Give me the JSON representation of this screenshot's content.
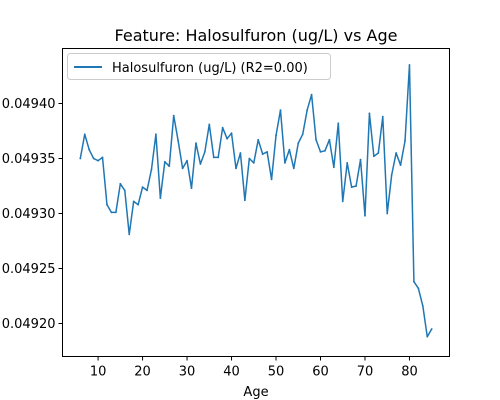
{
  "chart_data": {
    "type": "line",
    "title": "Feature: Halosulfuron (ug/L) vs Age",
    "xlabel": "Age",
    "ylabel": "",
    "xlim": [
      2,
      89
    ],
    "ylim": [
      0.04917,
      0.04945
    ],
    "xticks": [
      10,
      20,
      30,
      40,
      50,
      60,
      70,
      80
    ],
    "yticks": [
      0.0492,
      0.04925,
      0.0493,
      0.04935,
      0.0494
    ],
    "ytick_labels": [
      "0.04920",
      "0.04925",
      "0.04930",
      "0.04935",
      "0.04940"
    ],
    "grid": false,
    "legend": "upper left",
    "series": [
      {
        "name": "Halosulfuron (ug/L) (R2=0.00)",
        "color": "#1f77b4",
        "x": [
          6,
          7,
          8,
          9,
          10,
          11,
          12,
          13,
          14,
          15,
          16,
          17,
          18,
          19,
          20,
          21,
          22,
          23,
          24,
          25,
          26,
          27,
          28,
          29,
          30,
          31,
          32,
          33,
          34,
          35,
          36,
          37,
          38,
          39,
          40,
          41,
          42,
          43,
          44,
          45,
          46,
          47,
          48,
          49,
          50,
          51,
          52,
          53,
          54,
          55,
          56,
          57,
          58,
          59,
          60,
          61,
          62,
          63,
          64,
          65,
          66,
          67,
          68,
          69,
          70,
          71,
          72,
          73,
          74,
          75,
          76,
          77,
          78,
          79,
          80,
          81,
          82,
          83,
          84,
          85
        ],
        "y": [
          0.04935,
          0.049372,
          0.049358,
          0.04935,
          0.049348,
          0.049351,
          0.049308,
          0.049301,
          0.049301,
          0.049327,
          0.049321,
          0.049281,
          0.049311,
          0.049308,
          0.049324,
          0.049321,
          0.04934,
          0.049372,
          0.049314,
          0.049347,
          0.049343,
          0.049389,
          0.049366,
          0.049341,
          0.049348,
          0.049323,
          0.049364,
          0.049345,
          0.049356,
          0.049381,
          0.049351,
          0.049351,
          0.049378,
          0.049368,
          0.049373,
          0.049341,
          0.049355,
          0.049312,
          0.04935,
          0.049346,
          0.049367,
          0.049354,
          0.049356,
          0.049331,
          0.049371,
          0.049394,
          0.049346,
          0.049358,
          0.049341,
          0.049364,
          0.049372,
          0.049394,
          0.049408,
          0.049367,
          0.049356,
          0.049357,
          0.049367,
          0.049342,
          0.049382,
          0.049311,
          0.049346,
          0.049324,
          0.049325,
          0.049349,
          0.049298,
          0.049391,
          0.049352,
          0.049355,
          0.049388,
          0.0493,
          0.049335,
          0.049355,
          0.049344,
          0.049366,
          0.049435,
          0.049238,
          0.049232,
          0.049216,
          0.049188,
          0.049195
        ]
      }
    ]
  }
}
